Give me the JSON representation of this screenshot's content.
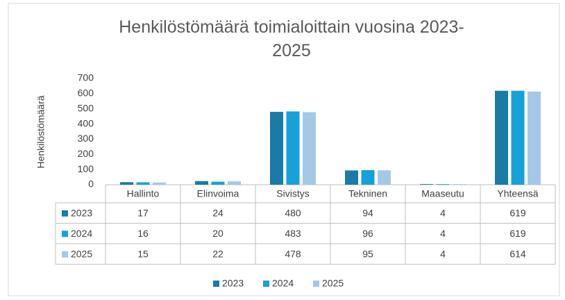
{
  "chart_data": {
    "type": "bar",
    "title": "Henkilöstömäärä toimialoittain vuosina 2023-2025",
    "ylabel": "Henkilöstömäärä",
    "categories": [
      "Hallinto",
      "Elinvoima",
      "Sivistys",
      "Tekninen",
      "Maaseutu",
      "Yhteensä"
    ],
    "series": [
      {
        "name": "2023",
        "color": "#1a7ba6",
        "values": [
          17,
          24,
          480,
          94,
          4,
          619
        ]
      },
      {
        "name": "2024",
        "color": "#17a1d9",
        "values": [
          16,
          20,
          483,
          96,
          4,
          619
        ]
      },
      {
        "name": "2025",
        "color": "#a5c8e6",
        "values": [
          15,
          22,
          478,
          95,
          4,
          614
        ]
      }
    ],
    "ylim": [
      0,
      700
    ],
    "yticks": [
      0,
      100,
      200,
      300,
      400,
      500,
      600,
      700
    ],
    "grid": false,
    "data_table": true,
    "legend": "bottom"
  }
}
